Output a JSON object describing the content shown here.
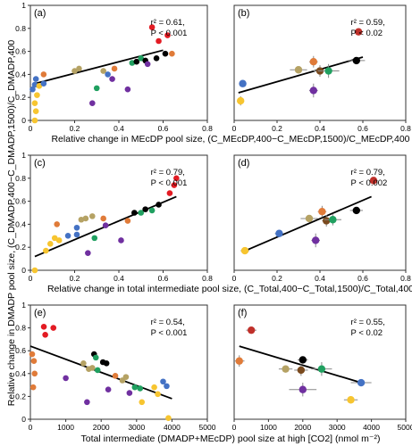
{
  "figure": {
    "ylabel": "Relative change in DMADP pool size, (C_DMADP,400−C_DMADP,1500)/C_DMADP,400",
    "xlabels": {
      "row1": "Relative change in MEcDP pool size, (C_MEcDP,400−C_MEcDP,1500)/C_MEcDP,400",
      "row2": "Relative change in total intermediate pool size, (C_Total,400−C_Total,1500)/C_Total,400",
      "row3": "Total intermediate (DMADP+MEcDP) pool size at high [CO2] (nmol m⁻²)"
    }
  },
  "chart_data": [
    {
      "panel": "(a)",
      "type": "scatter",
      "xlim": [
        0,
        0.8
      ],
      "ylim": [
        0,
        1
      ],
      "xticks": [
        "0",
        "0.2",
        "0.4",
        "0.6",
        "0.8"
      ],
      "yticks": [
        "0",
        "0.2",
        "0.4",
        "0.6",
        "0.8",
        "1"
      ],
      "stats": {
        "r2": "r² = 0.61,",
        "p": "P < 0.001"
      },
      "fit": {
        "x": [
          0.02,
          0.6
        ],
        "y": [
          0.32,
          0.61
        ]
      },
      "points": [
        {
          "x": 0.02,
          "y": 0.0,
          "c": "#f7c530"
        },
        {
          "x": 0.025,
          "y": 0.08,
          "c": "#f7c530"
        },
        {
          "x": 0.02,
          "y": 0.15,
          "c": "#f7c530"
        },
        {
          "x": 0.03,
          "y": 0.22,
          "c": "#f7c530"
        },
        {
          "x": 0.01,
          "y": 0.27,
          "c": "#4472c4"
        },
        {
          "x": 0.02,
          "y": 0.31,
          "c": "#4472c4"
        },
        {
          "x": 0.04,
          "y": 0.3,
          "c": "#f7c530"
        },
        {
          "x": 0.025,
          "y": 0.36,
          "c": "#4472c4"
        },
        {
          "x": 0.06,
          "y": 0.32,
          "c": "#4472c4"
        },
        {
          "x": 0.06,
          "y": 0.4,
          "c": "#e07b39"
        },
        {
          "x": 0.2,
          "y": 0.43,
          "c": "#b5a264"
        },
        {
          "x": 0.22,
          "y": 0.45,
          "c": "#b5a264"
        },
        {
          "x": 0.28,
          "y": 0.15,
          "c": "#7030a0"
        },
        {
          "x": 0.3,
          "y": 0.28,
          "c": "#20a060"
        },
        {
          "x": 0.33,
          "y": 0.43,
          "c": "#b5a264"
        },
        {
          "x": 0.35,
          "y": 0.4,
          "c": "#4472c4"
        },
        {
          "x": 0.37,
          "y": 0.36,
          "c": "#7030a0"
        },
        {
          "x": 0.38,
          "y": 0.45,
          "c": "#e07b39"
        },
        {
          "x": 0.44,
          "y": 0.27,
          "c": "#7030a0"
        },
        {
          "x": 0.46,
          "y": 0.5,
          "c": "#20a060"
        },
        {
          "x": 0.48,
          "y": 0.51,
          "c": "#000000"
        },
        {
          "x": 0.5,
          "y": 0.54,
          "c": "#20a060"
        },
        {
          "x": 0.52,
          "y": 0.52,
          "c": "#000000"
        },
        {
          "x": 0.53,
          "y": 0.49,
          "c": "#7030a0"
        },
        {
          "x": 0.55,
          "y": 0.81,
          "c": "#e31b23"
        },
        {
          "x": 0.57,
          "y": 0.54,
          "c": "#000000"
        },
        {
          "x": 0.58,
          "y": 0.69,
          "c": "#e31b23"
        },
        {
          "x": 0.61,
          "y": 0.58,
          "c": "#000000"
        },
        {
          "x": 0.62,
          "y": 0.74,
          "c": "#e31b23"
        },
        {
          "x": 0.64,
          "y": 0.58,
          "c": "#e07b39"
        }
      ]
    },
    {
      "panel": "(b)",
      "type": "scatter",
      "xlim": [
        0,
        0.8
      ],
      "ylim": [
        0,
        1
      ],
      "xticks": [
        "0",
        "0.2",
        "0.4",
        "0.6",
        "0.8"
      ],
      "yticks": [],
      "stats": {
        "r2": "r² = 0.59,",
        "p": "P < 0.02"
      },
      "fit": {
        "x": [
          0.02,
          0.6
        ],
        "y": [
          0.24,
          0.55
        ]
      },
      "points": [
        {
          "x": 0.03,
          "y": 0.17,
          "c": "#f7c530",
          "ex": 0.01,
          "ey": 0.04
        },
        {
          "x": 0.04,
          "y": 0.32,
          "c": "#4472c4",
          "ex": 0.01,
          "ey": 0.02
        },
        {
          "x": 0.3,
          "y": 0.44,
          "c": "#b5a264",
          "ex": 0.04,
          "ey": 0.02
        },
        {
          "x": 0.37,
          "y": 0.26,
          "c": "#7030a0",
          "ex": 0.02,
          "ey": 0.06
        },
        {
          "x": 0.37,
          "y": 0.51,
          "c": "#e07b39",
          "ex": 0.02,
          "ey": 0.05
        },
        {
          "x": 0.4,
          "y": 0.43,
          "c": "#7a4a1e",
          "ex": 0.03,
          "ey": 0.05
        },
        {
          "x": 0.44,
          "y": 0.43,
          "c": "#20a060",
          "ex": 0.05,
          "ey": 0.06
        },
        {
          "x": 0.57,
          "y": 0.52,
          "c": "#000000",
          "ex": 0.04,
          "ey": 0.03
        },
        {
          "x": 0.58,
          "y": 0.77,
          "c": "#c0302a",
          "ex": 0.02,
          "ey": 0.03
        }
      ]
    },
    {
      "panel": "(c)",
      "type": "scatter",
      "xlim": [
        0,
        0.8
      ],
      "ylim": [
        0,
        1
      ],
      "xticks": [
        "0",
        "0.2",
        "0.4",
        "0.6",
        "0.8"
      ],
      "yticks": [
        "0",
        "0.2",
        "0.4",
        "0.6",
        "0.8",
        "1"
      ],
      "stats": {
        "r2": "r² = 0.79,",
        "p": "P < 0.001"
      },
      "fit": {
        "x": [
          0.02,
          0.66
        ],
        "y": [
          0.12,
          0.64
        ]
      },
      "points": [
        {
          "x": 0.02,
          "y": 0.0,
          "c": "#f7c530"
        },
        {
          "x": 0.07,
          "y": 0.17,
          "c": "#f7c530"
        },
        {
          "x": 0.09,
          "y": 0.23,
          "c": "#f7c530"
        },
        {
          "x": 0.11,
          "y": 0.28,
          "c": "#f7c530"
        },
        {
          "x": 0.13,
          "y": 0.26,
          "c": "#f7c530"
        },
        {
          "x": 0.12,
          "y": 0.4,
          "c": "#e07b39"
        },
        {
          "x": 0.17,
          "y": 0.3,
          "c": "#4472c4"
        },
        {
          "x": 0.21,
          "y": 0.31,
          "c": "#4472c4"
        },
        {
          "x": 0.21,
          "y": 0.37,
          "c": "#4472c4"
        },
        {
          "x": 0.23,
          "y": 0.44,
          "c": "#b5a264"
        },
        {
          "x": 0.25,
          "y": 0.45,
          "c": "#b5a264"
        },
        {
          "x": 0.28,
          "y": 0.47,
          "c": "#b5a264"
        },
        {
          "x": 0.26,
          "y": 0.15,
          "c": "#7030a0"
        },
        {
          "x": 0.29,
          "y": 0.28,
          "c": "#20a060"
        },
        {
          "x": 0.33,
          "y": 0.45,
          "c": "#e07b39"
        },
        {
          "x": 0.34,
          "y": 0.39,
          "c": "#7030a0"
        },
        {
          "x": 0.41,
          "y": 0.26,
          "c": "#7030a0"
        },
        {
          "x": 0.44,
          "y": 0.43,
          "c": "#e07b39"
        },
        {
          "x": 0.47,
          "y": 0.5,
          "c": "#000000"
        },
        {
          "x": 0.5,
          "y": 0.5,
          "c": "#20a060"
        },
        {
          "x": 0.52,
          "y": 0.53,
          "c": "#000000"
        },
        {
          "x": 0.55,
          "y": 0.52,
          "c": "#20a060"
        },
        {
          "x": 0.58,
          "y": 0.57,
          "c": "#000000"
        },
        {
          "x": 0.63,
          "y": 0.67,
          "c": "#e31b23"
        },
        {
          "x": 0.65,
          "y": 0.74,
          "c": "#e31b23"
        },
        {
          "x": 0.66,
          "y": 0.8,
          "c": "#e31b23"
        }
      ]
    },
    {
      "panel": "(d)",
      "type": "scatter",
      "xlim": [
        0,
        0.8
      ],
      "ylim": [
        0,
        1
      ],
      "xticks": [
        "0",
        "0.2",
        "0.4",
        "0.6",
        "0.8"
      ],
      "yticks": [],
      "stats": {
        "r2": "r² = 0.79,",
        "p": "P < 0.002"
      },
      "fit": {
        "x": [
          0.04,
          0.64
        ],
        "y": [
          0.16,
          0.64
        ]
      },
      "points": [
        {
          "x": 0.05,
          "y": 0.17,
          "c": "#f7c530",
          "ex": 0.02,
          "ey": 0.03
        },
        {
          "x": 0.21,
          "y": 0.32,
          "c": "#4472c4",
          "ex": 0.02,
          "ey": 0.02
        },
        {
          "x": 0.35,
          "y": 0.45,
          "c": "#b5a264",
          "ex": 0.04,
          "ey": 0.02
        },
        {
          "x": 0.38,
          "y": 0.26,
          "c": "#7030a0",
          "ex": 0.02,
          "ey": 0.06
        },
        {
          "x": 0.41,
          "y": 0.51,
          "c": "#e07b39",
          "ex": 0.02,
          "ey": 0.05
        },
        {
          "x": 0.43,
          "y": 0.43,
          "c": "#7a4a1e",
          "ex": 0.02,
          "ey": 0.05
        },
        {
          "x": 0.46,
          "y": 0.44,
          "c": "#20a060",
          "ex": 0.04,
          "ey": 0.05
        },
        {
          "x": 0.57,
          "y": 0.52,
          "c": "#000000",
          "ex": 0.03,
          "ey": 0.03
        },
        {
          "x": 0.65,
          "y": 0.78,
          "c": "#c0302a",
          "ex": 0.02,
          "ey": 0.03
        }
      ]
    },
    {
      "panel": "(e)",
      "type": "scatter",
      "xlim": [
        0,
        5000
      ],
      "ylim": [
        0,
        1
      ],
      "xticks": [
        "0",
        "1000",
        "2000",
        "3000",
        "4000",
        "5000"
      ],
      "yticks": [
        "0",
        "0.2",
        "0.4",
        "0.6",
        "0.8",
        "1"
      ],
      "stats": {
        "r2": "r² = 0.54,",
        "p": "P < 0.001"
      },
      "fit": {
        "x": [
          0,
          4000
        ],
        "y": [
          0.64,
          0.18
        ]
      },
      "points": [
        {
          "x": 50,
          "y": 0.57,
          "c": "#e07b39"
        },
        {
          "x": 100,
          "y": 0.51,
          "c": "#e07b39"
        },
        {
          "x": 120,
          "y": 0.4,
          "c": "#e07b39"
        },
        {
          "x": 80,
          "y": 0.28,
          "c": "#e07b39"
        },
        {
          "x": 380,
          "y": 0.81,
          "c": "#e31b23"
        },
        {
          "x": 420,
          "y": 0.74,
          "c": "#e31b23"
        },
        {
          "x": 650,
          "y": 0.8,
          "c": "#e31b23"
        },
        {
          "x": 1000,
          "y": 0.36,
          "c": "#7030a0"
        },
        {
          "x": 1500,
          "y": 0.49,
          "c": "#b5a264"
        },
        {
          "x": 1650,
          "y": 0.44,
          "c": "#b5a264"
        },
        {
          "x": 1600,
          "y": 0.15,
          "c": "#7030a0"
        },
        {
          "x": 1750,
          "y": 0.45,
          "c": "#b5a264"
        },
        {
          "x": 1800,
          "y": 0.57,
          "c": "#000000"
        },
        {
          "x": 1850,
          "y": 0.54,
          "c": "#20a060"
        },
        {
          "x": 1900,
          "y": 0.43,
          "c": "#20a060"
        },
        {
          "x": 2050,
          "y": 0.5,
          "c": "#000000"
        },
        {
          "x": 2150,
          "y": 0.49,
          "c": "#000000"
        },
        {
          "x": 2200,
          "y": 0.26,
          "c": "#7030a0"
        },
        {
          "x": 2400,
          "y": 0.38,
          "c": "#e07b39"
        },
        {
          "x": 2600,
          "y": 0.34,
          "c": "#b5a264"
        },
        {
          "x": 2700,
          "y": 0.37,
          "c": "#b5a264"
        },
        {
          "x": 2800,
          "y": 0.23,
          "c": "#7030a0"
        },
        {
          "x": 2950,
          "y": 0.28,
          "c": "#20a060"
        },
        {
          "x": 3100,
          "y": 0.27,
          "c": "#20a060"
        },
        {
          "x": 3150,
          "y": 0.15,
          "c": "#f7c530"
        },
        {
          "x": 3500,
          "y": 0.28,
          "c": "#f7c530"
        },
        {
          "x": 3600,
          "y": 0.22,
          "c": "#f7c530"
        },
        {
          "x": 3750,
          "y": 0.33,
          "c": "#4472c4"
        },
        {
          "x": 3850,
          "y": 0.29,
          "c": "#4472c4"
        },
        {
          "x": 3900,
          "y": 0.01,
          "c": "#f7c530"
        }
      ]
    },
    {
      "panel": "(f)",
      "type": "scatter",
      "xlim": [
        0,
        5000
      ],
      "ylim": [
        0,
        1
      ],
      "xticks": [
        "0",
        "1000",
        "2000",
        "3000",
        "4000",
        "5000"
      ],
      "yticks": [],
      "stats": {
        "r2": "r² = 0.55,",
        "p": "P < 0.02"
      },
      "fit": {
        "x": [
          150,
          3700
        ],
        "y": [
          0.64,
          0.32
        ]
      },
      "points": [
        {
          "x": 150,
          "y": 0.51,
          "c": "#e07b39",
          "ex": 150,
          "ey": 0.05
        },
        {
          "x": 500,
          "y": 0.78,
          "c": "#c0302a",
          "ex": 150,
          "ey": 0.03
        },
        {
          "x": 1500,
          "y": 0.44,
          "c": "#b5a264",
          "ex": 200,
          "ey": 0.02
        },
        {
          "x": 1950,
          "y": 0.43,
          "c": "#7a4a1e",
          "ex": 200,
          "ey": 0.05
        },
        {
          "x": 2000,
          "y": 0.52,
          "c": "#000000",
          "ex": 150,
          "ey": 0.03
        },
        {
          "x": 2000,
          "y": 0.26,
          "c": "#7030a0",
          "ex": 400,
          "ey": 0.06
        },
        {
          "x": 2550,
          "y": 0.44,
          "c": "#20a060",
          "ex": 300,
          "ey": 0.06
        },
        {
          "x": 3400,
          "y": 0.17,
          "c": "#f7c530",
          "ex": 200,
          "ey": 0.03
        },
        {
          "x": 3700,
          "y": 0.32,
          "c": "#4472c4",
          "ex": 300,
          "ey": 0.02
        }
      ]
    }
  ]
}
